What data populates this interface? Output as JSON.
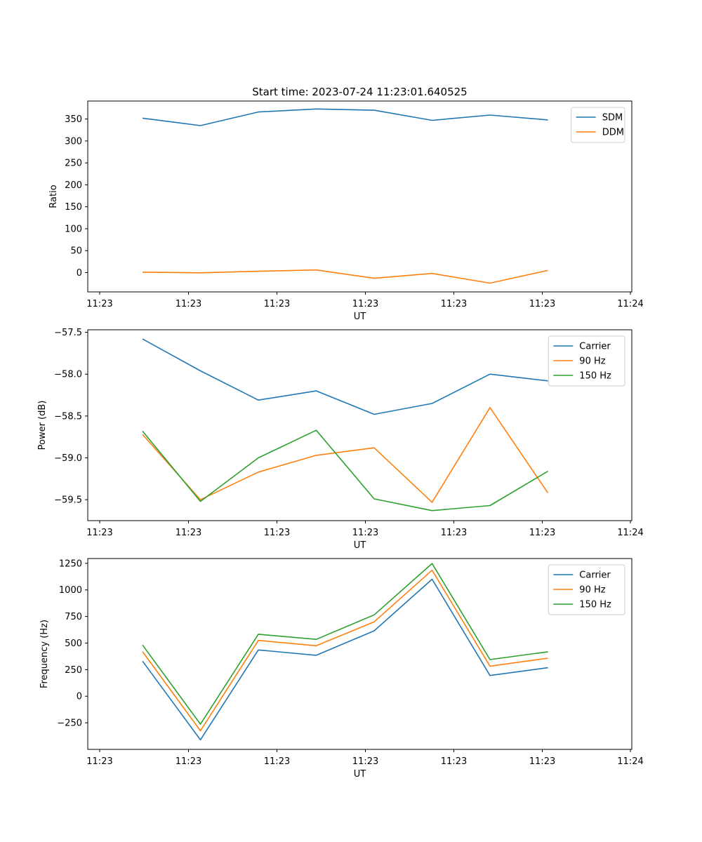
{
  "figure_title": "Start time: 2023-07-24 11:23:01.640525",
  "chart_data": [
    {
      "type": "line",
      "title": "Start time: 2023-07-24 11:23:01.640525",
      "xlabel": "UT",
      "ylabel": "Ratio",
      "xticks": [
        "11:23",
        "11:23",
        "11:23",
        "11:23",
        "11:23",
        "11:23",
        "11:24"
      ],
      "yticks": [
        0,
        50,
        100,
        150,
        200,
        250,
        300,
        350
      ],
      "ylim": [
        -44,
        391
      ],
      "legend_position": "top-right",
      "series": [
        {
          "name": "SDM",
          "color": "#1f77b4",
          "values": [
            352,
            335,
            366,
            373,
            370,
            347,
            359,
            348
          ]
        },
        {
          "name": "DDM",
          "color": "#ff7f0e",
          "values": [
            1,
            -0.5,
            3,
            6,
            -13,
            -2,
            -24,
            5
          ]
        }
      ]
    },
    {
      "type": "line",
      "title": "",
      "xlabel": "UT",
      "ylabel": "Power (dB)",
      "xticks": [
        "11:23",
        "11:23",
        "11:23",
        "11:23",
        "11:23",
        "11:23",
        "11:24"
      ],
      "yticks": [
        -59.5,
        -59.0,
        -58.5,
        -58.0,
        -57.5
      ],
      "ytick_labels": [
        "−59.5",
        "−59.0",
        "−58.5",
        "−58.0",
        "−57.5"
      ],
      "ylim": [
        -59.75,
        -57.47
      ],
      "legend_position": "top-right",
      "series": [
        {
          "name": "Carrier",
          "color": "#1f77b4",
          "values": [
            -57.58,
            -57.96,
            -58.31,
            -58.2,
            -58.48,
            -58.35,
            -58.0,
            -58.08
          ]
        },
        {
          "name": "90 Hz",
          "color": "#ff7f0e",
          "values": [
            -58.72,
            -59.5,
            -59.17,
            -58.97,
            -58.88,
            -59.53,
            -58.4,
            -59.42
          ]
        },
        {
          "name": "150 Hz",
          "color": "#2ca02c",
          "values": [
            -58.68,
            -59.52,
            -59.0,
            -58.67,
            -59.49,
            -59.63,
            -59.57,
            -59.16
          ]
        }
      ]
    },
    {
      "type": "line",
      "title": "",
      "xlabel": "UT",
      "ylabel": "Frequency (Hz)",
      "xticks": [
        "11:23",
        "11:23",
        "11:23",
        "11:23",
        "11:23",
        "11:23",
        "11:24"
      ],
      "yticks": [
        -250,
        0,
        250,
        500,
        750,
        1000,
        1250
      ],
      "ytick_labels": [
        "−250",
        "0",
        "250",
        "500",
        "750",
        "1000",
        "1250"
      ],
      "ylim": [
        -500,
        1295
      ],
      "legend_position": "top-right",
      "series": [
        {
          "name": "Carrier",
          "color": "#1f77b4",
          "values": [
            330,
            -410,
            435,
            385,
            615,
            1100,
            195,
            268
          ]
        },
        {
          "name": "90 Hz",
          "color": "#ff7f0e",
          "values": [
            420,
            -325,
            525,
            475,
            700,
            1185,
            283,
            358
          ]
        },
        {
          "name": "150 Hz",
          "color": "#2ca02c",
          "values": [
            482,
            -263,
            583,
            535,
            765,
            1248,
            345,
            418
          ]
        }
      ]
    }
  ]
}
